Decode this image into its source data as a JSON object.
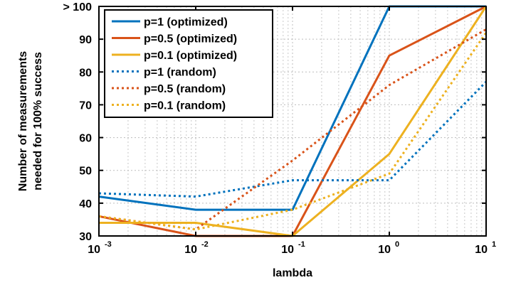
{
  "chart_data": {
    "type": "line",
    "xlabel": "lambda",
    "ylabel_lines": [
      "Number of measurements",
      "needed for 100% success"
    ],
    "xscale": "log",
    "xlim": [
      0.001,
      10
    ],
    "ylim": [
      30,
      100
    ],
    "grid": true,
    "legend_position": "top-left",
    "x_ticks": [
      {
        "value": 0.001,
        "base": "10",
        "exp": "-3"
      },
      {
        "value": 0.01,
        "base": "10",
        "exp": "-2"
      },
      {
        "value": 0.1,
        "base": "10",
        "exp": "-1"
      },
      {
        "value": 1,
        "base": "10",
        "exp": "0"
      },
      {
        "value": 10,
        "base": "10",
        "exp": "1"
      }
    ],
    "y_ticks": [
      {
        "value": 30,
        "label": "30"
      },
      {
        "value": 40,
        "label": "40"
      },
      {
        "value": 50,
        "label": "50"
      },
      {
        "value": 60,
        "label": "60"
      },
      {
        "value": 70,
        "label": "70"
      },
      {
        "value": 80,
        "label": "80"
      },
      {
        "value": 90,
        "label": "90"
      },
      {
        "value": 100,
        "label": "> 100"
      }
    ],
    "x": [
      0.001,
      0.01,
      0.1,
      1,
      10
    ],
    "series": [
      {
        "name": "p=1 (optimized)",
        "color": "#0072BD",
        "dash": "solid",
        "values": [
          42,
          38,
          38,
          100,
          100
        ]
      },
      {
        "name": "p=0.5 (optimized)",
        "color": "#D95319",
        "dash": "solid",
        "values": [
          36,
          30,
          30,
          85,
          100
        ]
      },
      {
        "name": "p=0.1 (optimized)",
        "color": "#EDB120",
        "dash": "solid",
        "values": [
          34,
          34,
          30,
          55,
          100
        ]
      },
      {
        "name": "p=1 (random)",
        "color": "#0072BD",
        "dash": "dotted",
        "values": [
          43,
          42,
          47,
          47,
          77
        ]
      },
      {
        "name": "p=0.5 (random)",
        "color": "#D95319",
        "dash": "dotted",
        "values": [
          36,
          32,
          53,
          76,
          93
        ]
      },
      {
        "name": "p=0.1 (random)",
        "color": "#EDB120",
        "dash": "dotted",
        "values": [
          36,
          32,
          38,
          49,
          92
        ]
      }
    ]
  }
}
